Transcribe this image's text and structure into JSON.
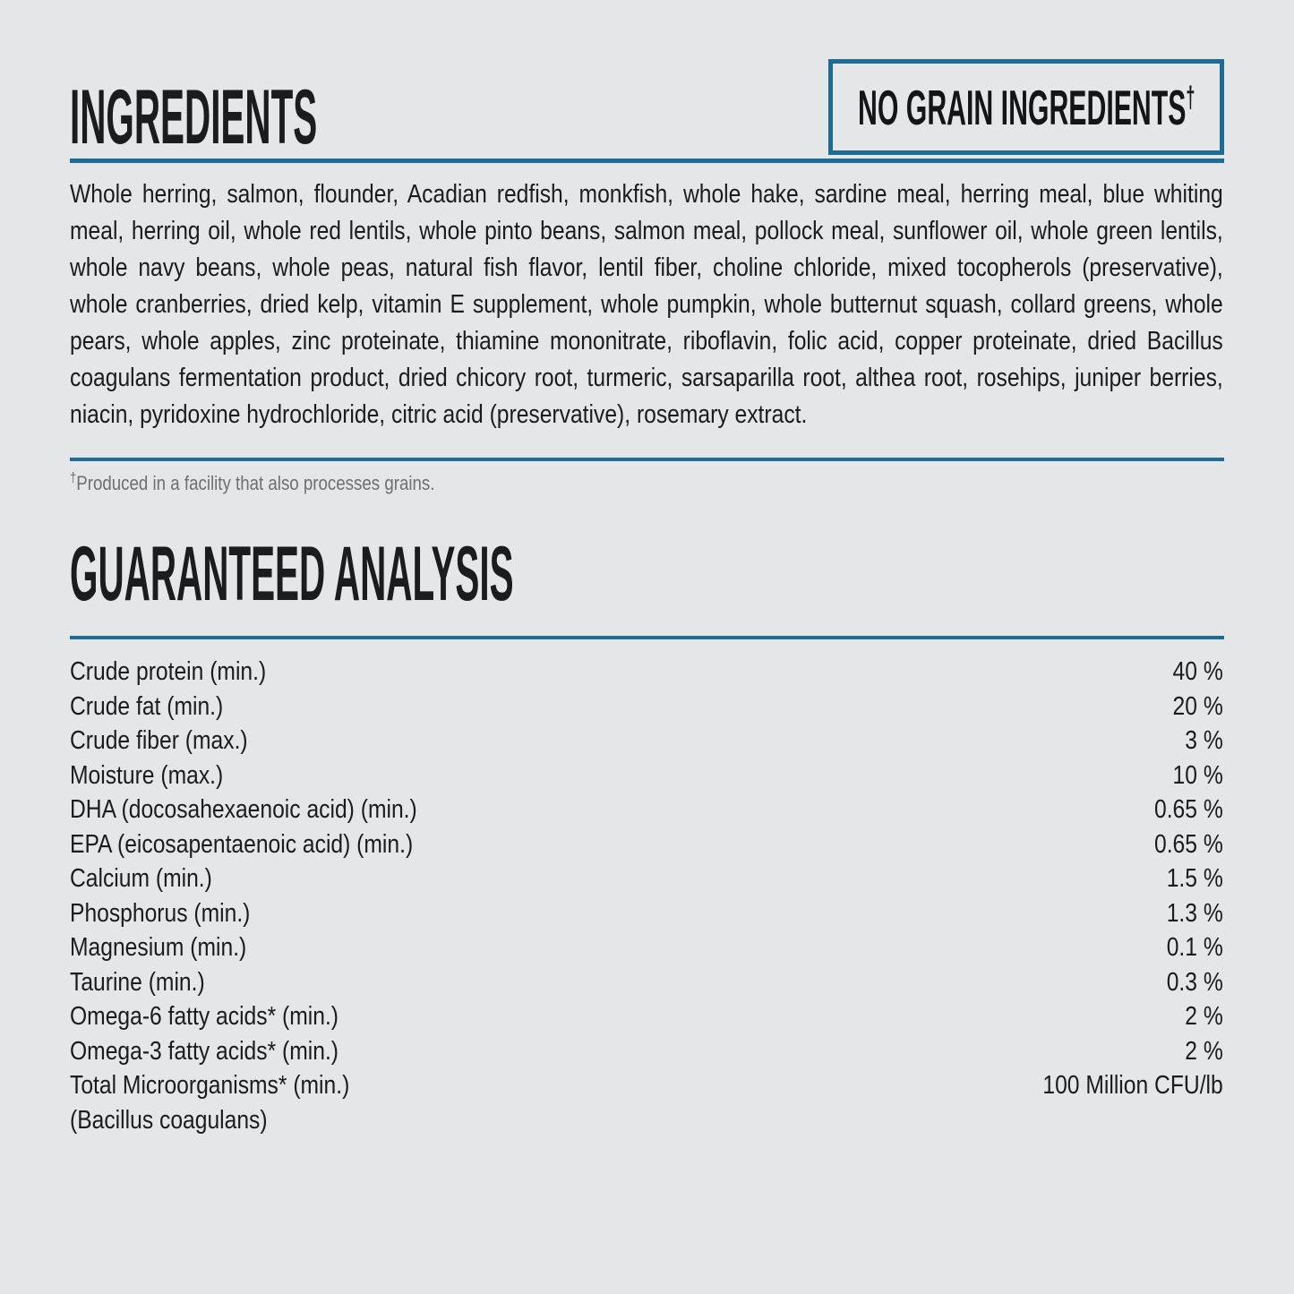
{
  "page": {
    "background_color": "#e4e6e7",
    "accent_color": "#1e6b94",
    "text_color": "#1b1c1e",
    "footnote_color": "#6c7073"
  },
  "ingredients": {
    "title": "INGREDIENTS",
    "badge_label": "NO GRAIN INGREDIENTS",
    "badge_mark": "†",
    "body": "Whole herring, salmon, flounder, Acadian redfish, monkfish, whole hake, sardine meal, herring meal, blue whiting meal, herring oil, whole red lentils, whole pinto beans, salmon meal, pollock meal, sunflower oil, whole green lentils, whole navy beans, whole peas, natural fish flavor, lentil fiber, choline chloride, mixed tocopherols (preservative), whole cranberries, dried kelp, vitamin E supplement, whole pumpkin, whole butternut squash, collard greens, whole pears, whole apples, zinc proteinate, thiamine mononitrate, riboflavin, folic acid, copper proteinate, dried Bacillus coagulans fermentation product, dried chicory root, turmeric, sarsaparilla root, althea root, rosehips, juniper berries, niacin, pyridoxine hydrochloride, citric acid (preservative), rosemary extract.",
    "footnote_mark": "†",
    "footnote_text": "Produced in a facility that also processes grains."
  },
  "analysis": {
    "title": "GUARANTEED ANALYSIS",
    "rows": [
      {
        "label": "Crude protein (min.)",
        "value": "40 %"
      },
      {
        "label": "Crude fat (min.)",
        "value": "20 %"
      },
      {
        "label": "Crude fiber (max.)",
        "value": "3 %"
      },
      {
        "label": "Moisture (max.)",
        "value": "10 %"
      },
      {
        "label": "DHA (docosahexaenoic acid) (min.)",
        "value": "0.65 %"
      },
      {
        "label": "EPA (eicosapentaenoic acid) (min.)",
        "value": "0.65 %"
      },
      {
        "label": "Calcium (min.)",
        "value": "1.5 %"
      },
      {
        "label": "Phosphorus (min.)",
        "value": "1.3 %"
      },
      {
        "label": "Magnesium (min.)",
        "value": "0.1 %"
      },
      {
        "label": "Taurine (min.)",
        "value": "0.3 %"
      },
      {
        "label": "Omega-6 fatty acids* (min.)",
        "value": "2 %"
      },
      {
        "label": "Omega-3 fatty acids* (min.)",
        "value": "2 %"
      },
      {
        "label": "Total Microorganisms* (min.)",
        "value": "100 Million CFU/lb"
      },
      {
        "label": "(Bacillus coagulans)",
        "value": ""
      }
    ]
  }
}
